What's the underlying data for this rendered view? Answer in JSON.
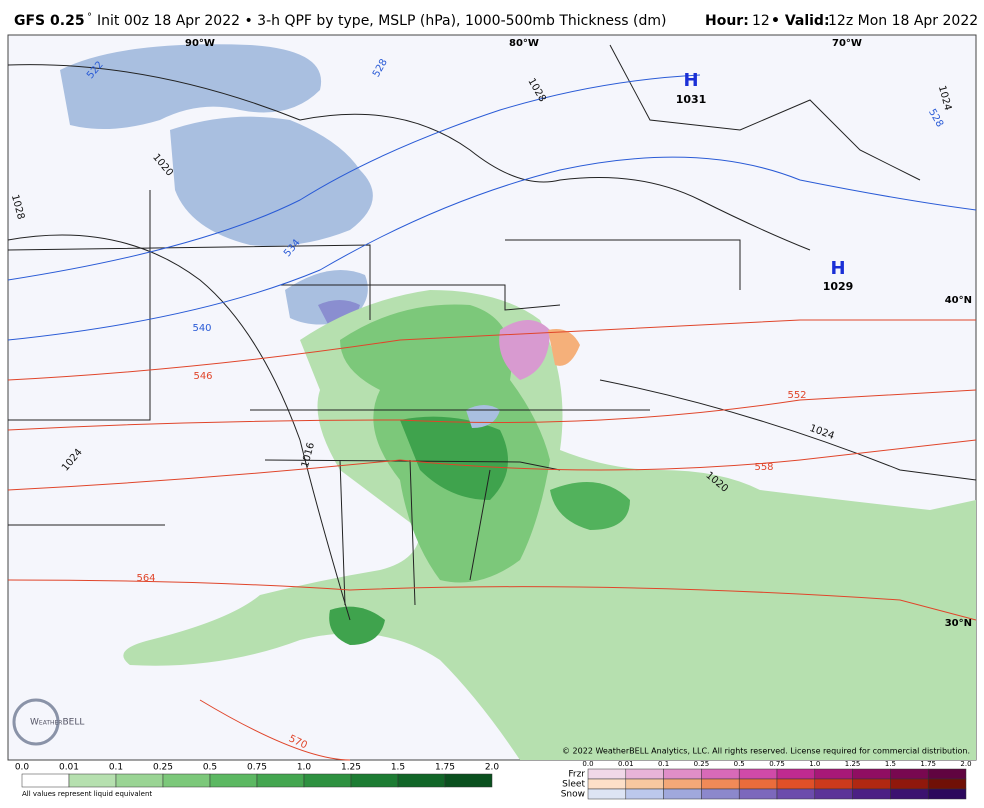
{
  "header": {
    "title": "GFS 0.25",
    "degree": "°",
    "subtitle": "Init 00z 18 Apr 2022 • 3-h QPF by type, MSLP (hPa), 1000-500mb Thickness (dm)",
    "hour_label": "Hour:",
    "hour": "12",
    "valid_label": "• Valid:",
    "valid": "12z Mon 18 Apr 2022"
  },
  "map": {
    "longitude_labels": [
      "90°W",
      "80°W",
      "70°W"
    ],
    "latitude_labels": [
      "40°N",
      "30°N"
    ],
    "highs": [
      {
        "symbol": "H",
        "pressure": "1031"
      },
      {
        "symbol": "H",
        "pressure": "1029"
      }
    ],
    "isobar_labels": [
      "1028",
      "1020",
      "1028",
      "1016",
      "1024",
      "1024",
      "1020",
      "1024"
    ],
    "thickness_labels": [
      "522",
      "528",
      "534",
      "540",
      "546",
      "552",
      "558",
      "564",
      "570",
      "528"
    ],
    "logo": "WeatherBELL",
    "copyright": "© 2022 WeatherBELL Analytics, LLC. All rights reserved. License required for commercial distribution."
  },
  "legend": {
    "rain_ticks": [
      "0.0",
      "0.01",
      "0.1",
      "0.25",
      "0.5",
      "0.75",
      "1.0",
      "1.25",
      "1.5",
      "1.75",
      "2.0"
    ],
    "footnote": "All values represent liquid equivalent",
    "type_ticks": [
      "0.0",
      "0.01",
      "0.1",
      "0.25",
      "0.5",
      "0.75",
      "1.0",
      "1.25",
      "1.5",
      "1.75",
      "2.0"
    ],
    "types": [
      "Frzr",
      "Sleet",
      "Snow"
    ]
  }
}
